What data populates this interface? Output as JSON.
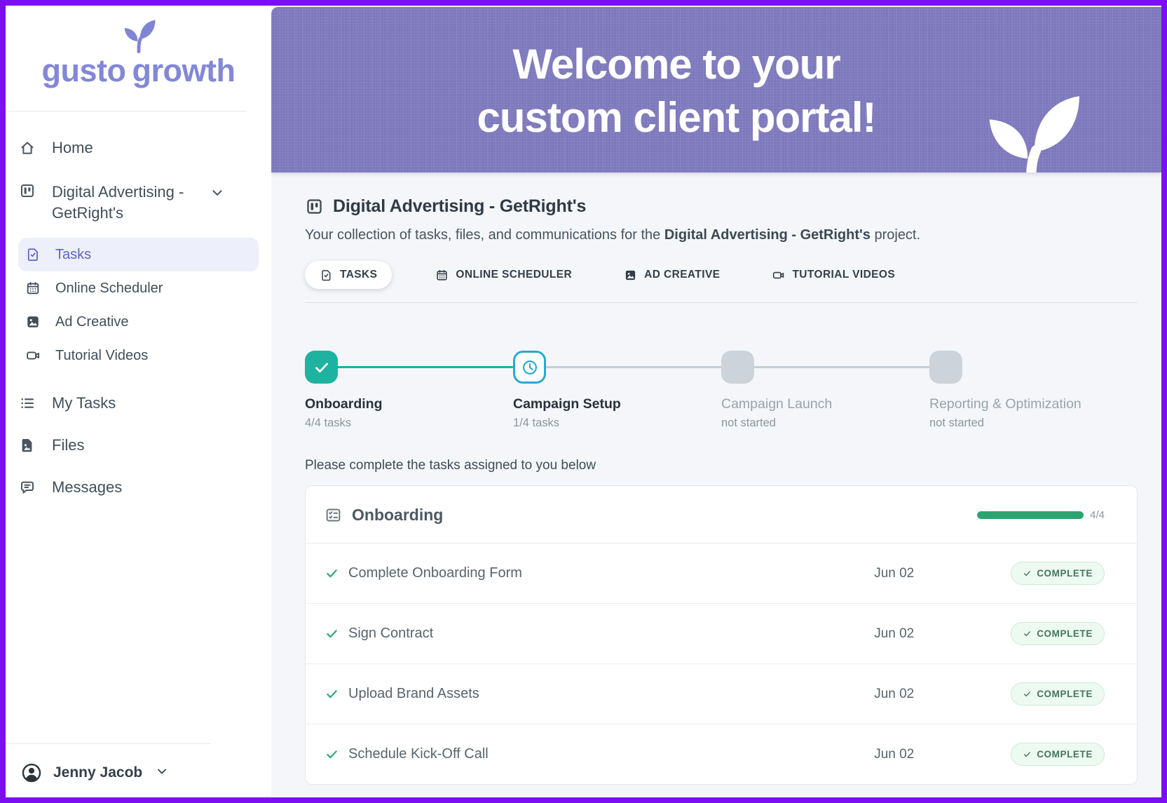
{
  "sidebar": {
    "logo": {
      "word1": "gusto",
      "word2": "growth"
    },
    "items": {
      "home": "Home",
      "project": "Digital Advertising - GetRight's",
      "tasks": "Tasks",
      "online_scheduler": "Online Scheduler",
      "ad_creative": "Ad Creative",
      "tutorial_videos": "Tutorial Videos",
      "my_tasks": "My Tasks",
      "files": "Files",
      "messages": "Messages"
    },
    "user_name": "Jenny Jacob"
  },
  "banner": {
    "title_line1": "Welcome to your",
    "title_line2": "custom client portal!"
  },
  "page": {
    "title": "Digital Advertising - GetRight's",
    "description_prefix": "Your collection of tasks, files, and communications for the ",
    "description_bold": "Digital Advertising - GetRight's",
    "description_suffix": " project."
  },
  "tabs": [
    {
      "label": "TASKS",
      "active": true
    },
    {
      "label": "ONLINE SCHEDULER",
      "active": false
    },
    {
      "label": "AD CREATIVE",
      "active": false
    },
    {
      "label": "TUTORIAL VIDEOS",
      "active": false
    }
  ],
  "stepper": [
    {
      "label": "Onboarding",
      "sublabel": "4/4 tasks",
      "state": "complete"
    },
    {
      "label": "Campaign Setup",
      "sublabel": "1/4 tasks",
      "state": "current"
    },
    {
      "label": "Campaign Launch",
      "sublabel": "not started",
      "state": "pending"
    },
    {
      "label": "Reporting & Optimization",
      "sublabel": "not started",
      "state": "pending"
    }
  ],
  "instruction": "Please complete the tasks assigned to you below",
  "task_card": {
    "title": "Onboarding",
    "progress_label": "4/4",
    "progress_percent": 100,
    "tasks": [
      {
        "name": "Complete Onboarding Form",
        "date": "Jun 02",
        "status": "COMPLETE"
      },
      {
        "name": "Sign Contract",
        "date": "Jun 02",
        "status": "COMPLETE"
      },
      {
        "name": "Upload Brand Assets",
        "date": "Jun 02",
        "status": "COMPLETE"
      },
      {
        "name": "Schedule Kick-Off Call",
        "date": "Jun 02",
        "status": "COMPLETE"
      }
    ]
  },
  "colors": {
    "frame": "#7b0ff2",
    "banner_purple": "#7d78bc",
    "brand_purple": "#8287d8",
    "active_nav_purple": "#5d63c8",
    "complete_teal": "#1db3a0",
    "current_blue": "#2aa8d8",
    "progress_green": "#2ca46f",
    "badge_green_text": "#45755d",
    "main_background": "#f4f6f9"
  }
}
